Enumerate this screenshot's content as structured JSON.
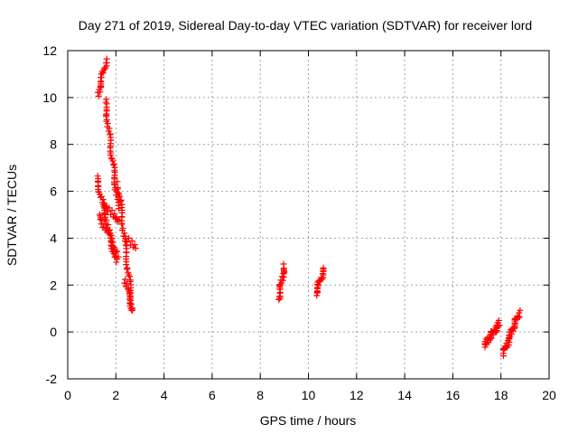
{
  "chart_data": {
    "type": "scatter",
    "title": "Day 271 of 2019, Sidereal Day-to-day VTEC variation (SDTVAR) for receiver lord",
    "xlabel": "GPS time / hours",
    "ylabel": "SDTVAR / TECUs",
    "xlim": [
      0,
      20
    ],
    "ylim": [
      -2,
      12
    ],
    "xticks": [
      "0",
      "2",
      "4",
      "6",
      "8",
      "10",
      "12",
      "14",
      "16",
      "18",
      "20"
    ],
    "yticks": [
      "-2",
      "0",
      "2",
      "4",
      "6",
      "8",
      "10",
      "12"
    ],
    "grid": true,
    "marker": "+",
    "color": "#ff0000",
    "series": [
      {
        "name": "SDTVAR",
        "segments": [
          {
            "x0": 1.25,
            "y0": 10.1,
            "x1": 1.6,
            "y1": 11.6,
            "n": 22
          },
          {
            "x0": 1.55,
            "y0": 9.9,
            "x1": 2.1,
            "y1": 5.3,
            "n": 50
          },
          {
            "x0": 1.2,
            "y0": 6.6,
            "x1": 2.0,
            "y1": 3.0,
            "n": 45
          },
          {
            "x0": 1.3,
            "y0": 5.0,
            "x1": 2.1,
            "y1": 3.3,
            "n": 25
          },
          {
            "x0": 1.5,
            "y0": 5.5,
            "x1": 2.1,
            "y1": 4.7,
            "n": 16
          },
          {
            "x0": 2.1,
            "y0": 6.3,
            "x1": 2.7,
            "y1": 0.9,
            "n": 50
          },
          {
            "x0": 2.4,
            "y0": 2.2,
            "x1": 2.7,
            "y1": 0.9,
            "n": 18
          },
          {
            "x0": 2.4,
            "y0": 4.0,
            "x1": 2.8,
            "y1": 3.6,
            "n": 8
          },
          {
            "x0": 8.75,
            "y0": 1.4,
            "x1": 9.0,
            "y1": 2.8,
            "n": 24
          },
          {
            "x0": 10.3,
            "y0": 1.6,
            "x1": 10.65,
            "y1": 2.7,
            "n": 22
          },
          {
            "x0": 17.3,
            "y0": -0.6,
            "x1": 17.95,
            "y1": 0.4,
            "n": 40
          },
          {
            "x0": 18.1,
            "y0": -0.9,
            "x1": 18.75,
            "y1": 0.8,
            "n": 42
          }
        ]
      }
    ]
  }
}
